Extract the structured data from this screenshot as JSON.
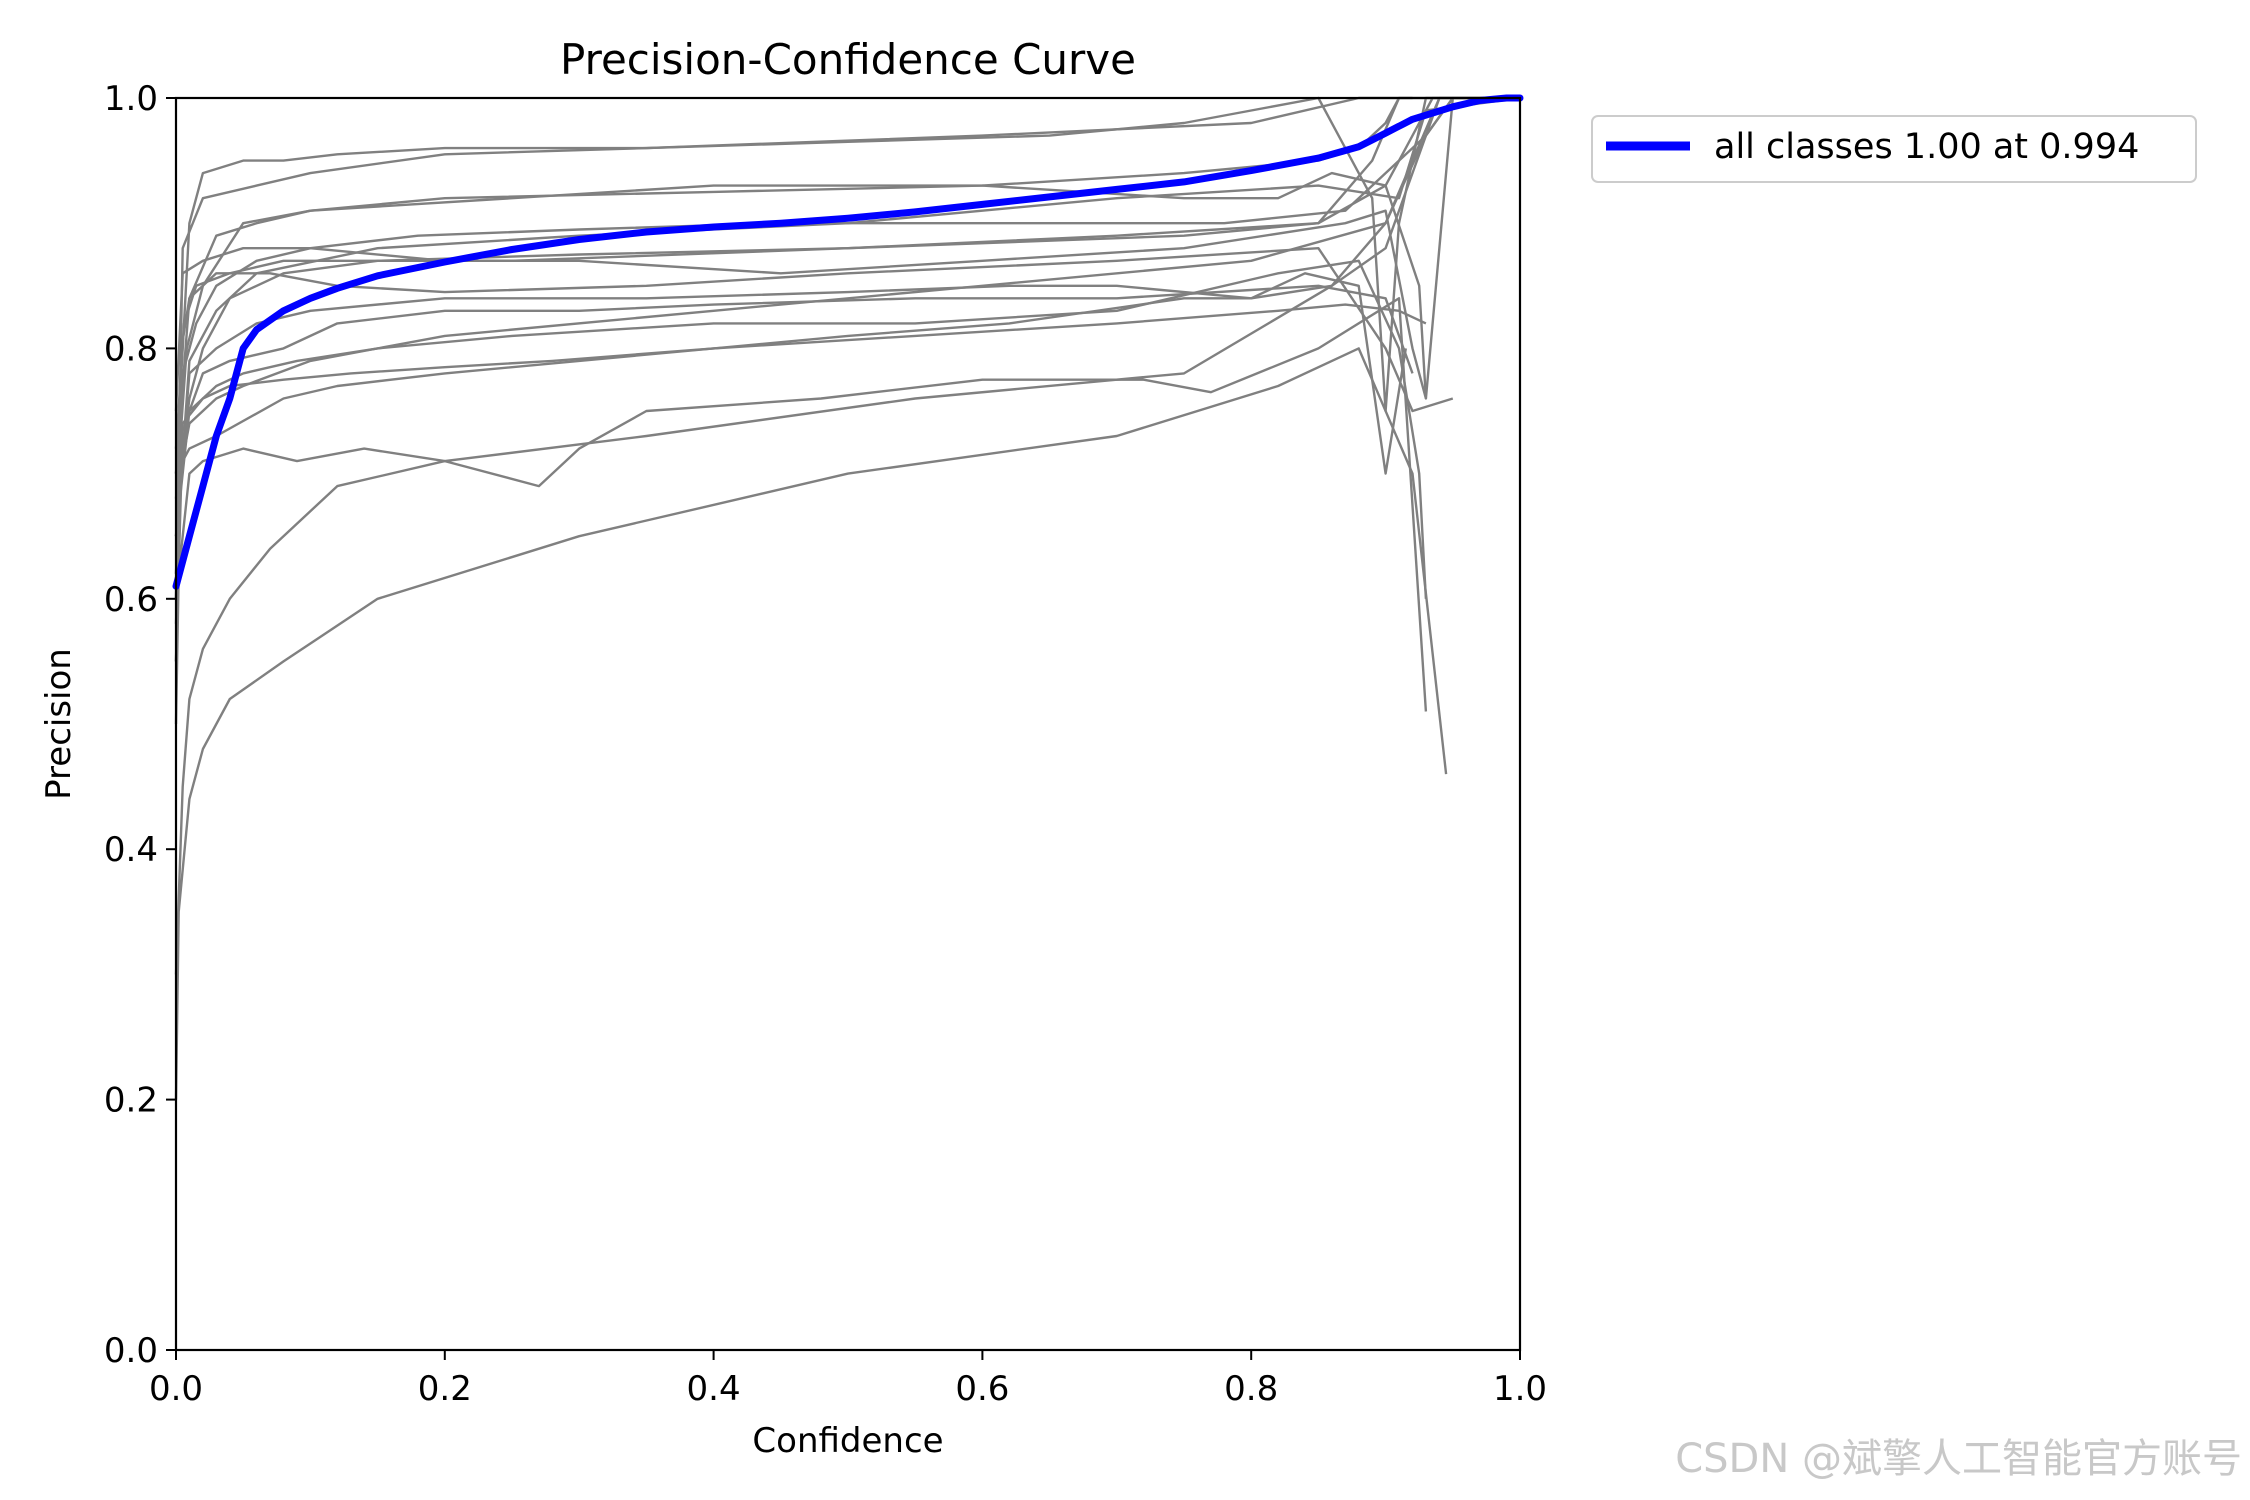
{
  "chart_data": {
    "type": "line",
    "title": "Precision-Confidence Curve",
    "xlabel": "Confidence",
    "ylabel": "Precision",
    "xlim": [
      0.0,
      1.0
    ],
    "ylim": [
      0.0,
      1.0
    ],
    "xticks": [
      0.0,
      0.2,
      0.4,
      0.6,
      0.8,
      1.0
    ],
    "yticks": [
      0.0,
      0.2,
      0.4,
      0.6,
      0.8,
      1.0
    ],
    "tick_labels": [
      "0.0",
      "0.2",
      "0.4",
      "0.6",
      "0.8",
      "1.0"
    ],
    "grid": false,
    "legend_position": "outside-top-right",
    "legend_label": "all classes 1.00 at 0.994",
    "main_series": {
      "name": "all classes 1.00 at 0.994",
      "color": "#0000ff",
      "x": [
        0.0,
        0.01,
        0.02,
        0.03,
        0.04,
        0.05,
        0.06,
        0.08,
        0.1,
        0.12,
        0.15,
        0.2,
        0.25,
        0.3,
        0.35,
        0.4,
        0.45,
        0.5,
        0.55,
        0.6,
        0.65,
        0.7,
        0.75,
        0.8,
        0.85,
        0.88,
        0.9,
        0.92,
        0.95,
        0.97,
        0.99,
        1.0
      ],
      "y": [
        0.61,
        0.65,
        0.69,
        0.73,
        0.76,
        0.8,
        0.815,
        0.83,
        0.84,
        0.848,
        0.858,
        0.869,
        0.879,
        0.887,
        0.893,
        0.897,
        0.9,
        0.904,
        0.909,
        0.915,
        0.921,
        0.927,
        0.933,
        0.942,
        0.952,
        0.961,
        0.972,
        0.983,
        0.993,
        0.998,
        1.0,
        1.0
      ]
    },
    "class_series_color": "#808080",
    "class_series": [
      {
        "x": [
          0,
          0.003,
          0.01,
          0.03,
          0.05,
          0.1,
          0.2,
          0.4,
          0.6,
          0.8,
          0.9,
          0.93,
          0.95,
          1.0
        ],
        "y": [
          0.62,
          0.7,
          0.74,
          0.76,
          0.77,
          0.79,
          0.81,
          0.83,
          0.85,
          0.87,
          0.9,
          0.97,
          1.0,
          1.0
        ]
      },
      {
        "x": [
          0,
          0.004,
          0.01,
          0.03,
          0.06,
          0.15,
          0.3,
          0.5,
          0.7,
          0.85,
          0.91,
          0.93,
          1.0
        ],
        "y": [
          0.55,
          0.7,
          0.79,
          0.83,
          0.86,
          0.88,
          0.89,
          0.9,
          0.92,
          0.93,
          0.92,
          0.99,
          1.0
        ]
      },
      {
        "x": [
          0,
          0.005,
          0.01,
          0.02,
          0.04,
          0.07,
          0.12,
          0.2,
          0.35,
          0.55,
          0.75,
          0.86,
          0.9,
          0.94,
          1.0
        ],
        "y": [
          0.3,
          0.45,
          0.52,
          0.56,
          0.6,
          0.64,
          0.69,
          0.71,
          0.73,
          0.76,
          0.78,
          0.85,
          0.88,
          1.0,
          1.0
        ]
      },
      {
        "x": [
          0,
          0.002,
          0.01,
          0.02,
          0.04,
          0.08,
          0.15,
          0.3,
          0.5,
          0.7,
          0.82,
          0.88,
          0.92,
          0.945
        ],
        "y": [
          0.2,
          0.35,
          0.44,
          0.48,
          0.52,
          0.55,
          0.6,
          0.65,
          0.7,
          0.73,
          0.77,
          0.8,
          0.7,
          0.46
        ]
      },
      {
        "x": [
          0,
          0.01,
          0.02,
          0.05,
          0.09,
          0.14,
          0.2,
          0.27,
          0.3,
          0.35,
          0.48,
          0.6,
          0.72,
          0.77,
          0.85,
          0.91,
          0.93
        ],
        "y": [
          0.6,
          0.7,
          0.71,
          0.72,
          0.71,
          0.72,
          0.71,
          0.69,
          0.72,
          0.75,
          0.76,
          0.775,
          0.775,
          0.765,
          0.8,
          0.84,
          0.51
        ]
      },
      {
        "x": [
          0,
          0.01,
          0.03,
          0.08,
          0.12,
          0.2,
          0.3,
          0.4,
          0.5,
          0.62,
          0.75,
          0.8,
          0.84,
          0.88,
          0.9,
          0.915
        ],
        "y": [
          0.7,
          0.72,
          0.73,
          0.76,
          0.77,
          0.78,
          0.79,
          0.8,
          0.81,
          0.82,
          0.84,
          0.84,
          0.86,
          0.85,
          0.7,
          0.8
        ]
      },
      {
        "x": [
          0,
          0.01,
          0.03,
          0.06,
          0.1,
          0.2,
          0.35,
          0.5,
          0.62,
          0.7,
          0.8,
          0.86,
          0.9,
          0.94,
          1.0
        ],
        "y": [
          0.65,
          0.78,
          0.8,
          0.82,
          0.83,
          0.84,
          0.84,
          0.845,
          0.85,
          0.85,
          0.84,
          0.85,
          0.9,
          1.0,
          1.0
        ]
      },
      {
        "x": [
          0,
          0.005,
          0.02,
          0.05,
          0.1,
          0.2,
          0.3,
          0.45,
          0.6,
          0.75,
          0.87,
          0.9,
          0.92,
          0.93,
          0.95,
          1.0
        ],
        "y": [
          0.75,
          0.86,
          0.87,
          0.88,
          0.88,
          0.87,
          0.87,
          0.86,
          0.87,
          0.88,
          0.9,
          0.91,
          0.8,
          0.76,
          1.0,
          1.0
        ]
      },
      {
        "x": [
          0,
          0.008,
          0.02,
          0.05,
          0.1,
          0.25,
          0.4,
          0.6,
          0.75,
          0.82,
          0.86,
          0.9,
          0.925,
          0.93
        ],
        "y": [
          0.68,
          0.8,
          0.85,
          0.9,
          0.91,
          0.92,
          0.93,
          0.93,
          0.92,
          0.92,
          0.94,
          0.93,
          0.85,
          0.76
        ]
      },
      {
        "x": [
          0,
          0.01,
          0.03,
          0.06,
          0.1,
          0.2,
          0.4,
          0.6,
          0.75,
          0.85,
          0.88,
          0.9,
          0.91,
          1.0
        ],
        "y": [
          0.7,
          0.84,
          0.89,
          0.9,
          0.91,
          0.92,
          0.925,
          0.93,
          0.94,
          0.95,
          0.96,
          0.98,
          1.0,
          1.0
        ]
      },
      {
        "x": [
          0,
          0.006,
          0.015,
          0.04,
          0.08,
          0.15,
          0.3,
          0.5,
          0.7,
          0.85,
          0.9,
          0.92,
          0.935,
          1.0
        ],
        "y": [
          0.72,
          0.82,
          0.85,
          0.86,
          0.87,
          0.87,
          0.875,
          0.88,
          0.89,
          0.9,
          0.93,
          0.97,
          1.0,
          1.0
        ]
      },
      {
        "x": [
          0,
          0.005,
          0.02,
          0.06,
          0.1,
          0.2,
          0.35,
          0.5,
          0.65,
          0.75,
          0.8,
          0.85,
          0.89,
          0.9,
          0.91,
          0.93,
          1.0
        ],
        "y": [
          0.6,
          0.88,
          0.92,
          0.93,
          0.94,
          0.955,
          0.96,
          0.965,
          0.97,
          0.98,
          0.99,
          1.0,
          0.92,
          0.75,
          0.9,
          1.0,
          1.0
        ]
      },
      {
        "x": [
          0,
          0.004,
          0.01,
          0.03,
          0.07,
          0.12,
          0.2,
          0.35,
          0.5,
          0.7,
          0.85,
          0.9,
          0.92,
          0.95
        ],
        "y": [
          0.6,
          0.8,
          0.84,
          0.86,
          0.86,
          0.85,
          0.845,
          0.85,
          0.86,
          0.87,
          0.88,
          0.8,
          0.75,
          0.76
        ]
      },
      {
        "x": [
          0,
          0.003,
          0.01,
          0.02,
          0.04,
          0.08,
          0.12,
          0.2,
          0.3,
          0.4,
          0.55,
          0.7,
          0.85,
          0.9,
          0.92
        ],
        "y": [
          0.5,
          0.68,
          0.75,
          0.78,
          0.79,
          0.8,
          0.82,
          0.83,
          0.83,
          0.835,
          0.84,
          0.84,
          0.85,
          0.84,
          0.78
        ]
      },
      {
        "x": [
          0,
          0.004,
          0.01,
          0.03,
          0.05,
          0.09,
          0.15,
          0.25,
          0.4,
          0.55,
          0.7,
          0.82,
          0.88,
          0.91,
          0.925,
          0.93
        ],
        "y": [
          0.58,
          0.72,
          0.75,
          0.77,
          0.78,
          0.79,
          0.8,
          0.81,
          0.82,
          0.82,
          0.83,
          0.86,
          0.87,
          0.8,
          0.7,
          0.6
        ]
      },
      {
        "x": [
          0,
          0.01,
          0.02,
          0.05,
          0.08,
          0.12,
          0.2,
          0.35,
          0.6,
          0.8,
          0.88,
          0.9,
          0.92
        ],
        "y": [
          0.7,
          0.9,
          0.94,
          0.95,
          0.95,
          0.955,
          0.96,
          0.96,
          0.97,
          0.98,
          1.0,
          1.0,
          1.0
        ]
      },
      {
        "x": [
          0,
          0.005,
          0.02,
          0.04,
          0.08,
          0.13,
          0.2,
          0.28,
          0.4,
          0.55,
          0.7,
          0.82,
          0.87,
          0.91,
          0.93
        ],
        "y": [
          0.65,
          0.74,
          0.76,
          0.77,
          0.775,
          0.78,
          0.785,
          0.79,
          0.8,
          0.81,
          0.82,
          0.83,
          0.835,
          0.83,
          0.82
        ]
      },
      {
        "x": [
          0,
          0.003,
          0.01,
          0.02,
          0.04,
          0.08,
          0.15,
          0.25,
          0.5,
          0.75,
          0.85,
          0.89,
          0.91
        ],
        "y": [
          0.55,
          0.7,
          0.76,
          0.8,
          0.84,
          0.86,
          0.87,
          0.87,
          0.88,
          0.89,
          0.9,
          0.95,
          1.0
        ]
      },
      {
        "x": [
          0,
          0.005,
          0.015,
          0.03,
          0.06,
          0.1,
          0.18,
          0.3,
          0.45,
          0.6,
          0.78,
          0.87,
          0.9,
          0.93,
          0.95,
          1.0
        ],
        "y": [
          0.62,
          0.78,
          0.82,
          0.85,
          0.87,
          0.88,
          0.89,
          0.895,
          0.9,
          0.9,
          0.9,
          0.91,
          0.94,
          0.97,
          1.0,
          1.0
        ]
      }
    ]
  },
  "watermark": "CSDN @斌擎人工智能官方账号"
}
